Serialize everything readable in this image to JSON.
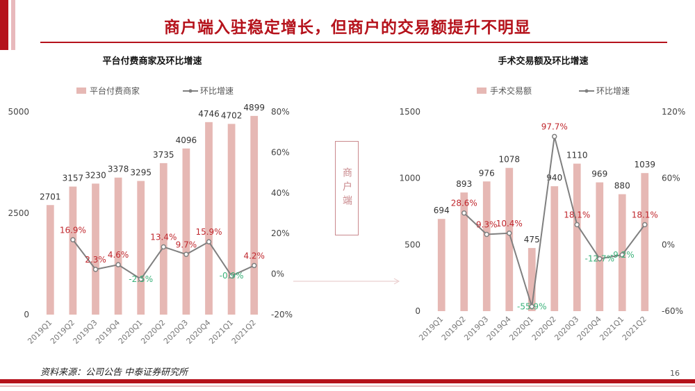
{
  "page": {
    "title": "商户端入驻稳定增长，但商户的交易额提升不明显",
    "source": "资料来源：公司公告 中泰证券研究所",
    "page_number": "16",
    "middle_label": "商户端",
    "colors": {
      "accent": "#b5121b",
      "bar": "#e6b8b4",
      "line": "#7f7f7f",
      "positive_label": "#c0282e",
      "negative_label": "#3bb27a"
    }
  },
  "chart_data": [
    {
      "type": "bar",
      "title": "平台付费商家及环比增速",
      "categories": [
        "2019Q1",
        "2019Q2",
        "2019Q3",
        "2019Q4",
        "2020Q1",
        "2020Q2",
        "2020Q3",
        "2020Q4",
        "2021Q1",
        "2021Q2"
      ],
      "series": [
        {
          "name": "平台付费商家",
          "type": "bar",
          "axis": "left",
          "values": [
            2701,
            3157,
            3230,
            3378,
            3295,
            3735,
            4096,
            4746,
            4702,
            4899
          ]
        },
        {
          "name": "环比增速",
          "type": "line",
          "axis": "right",
          "values": [
            null,
            16.9,
            2.3,
            4.6,
            -2.5,
            13.4,
            9.7,
            15.9,
            -0.9,
            4.2
          ],
          "labels": [
            "",
            "16.9%",
            "2.3%",
            "4.6%",
            "-2.5%",
            "13.4%",
            "9.7%",
            "15.9%",
            "-0.9%",
            "4.2%"
          ]
        }
      ],
      "left_axis": {
        "ylim": [
          0,
          5000
        ],
        "ticks": [
          "0",
          "2500",
          "5000"
        ]
      },
      "right_axis": {
        "ylim": [
          -20,
          80
        ],
        "ticks": [
          "-20%",
          "0%",
          "20%",
          "40%",
          "60%",
          "80%"
        ]
      },
      "legend": "top"
    },
    {
      "type": "bar",
      "title": "手术交易额及环比增速",
      "categories": [
        "2019Q1",
        "2019Q2",
        "2019Q3",
        "2019Q4",
        "2020Q1",
        "2020Q2",
        "2020Q3",
        "2020Q4",
        "2021Q1",
        "2021Q2"
      ],
      "series": [
        {
          "name": "手术交易额",
          "type": "bar",
          "axis": "left",
          "values": [
            694,
            893,
            976,
            1078,
            475,
            940,
            1110,
            969,
            880,
            1039
          ]
        },
        {
          "name": "环比增速",
          "type": "line",
          "axis": "right",
          "values": [
            null,
            28.6,
            9.3,
            10.4,
            -55.9,
            97.7,
            18.1,
            -12.7,
            -9.2,
            18.1
          ],
          "labels": [
            "",
            "28.6%",
            "9.3%",
            "10.4%",
            "-55.9%",
            "97.7%",
            "18.1%",
            "-12.7%",
            "-9.2%",
            "18.1%"
          ]
        }
      ],
      "left_axis": {
        "ylim": [
          0,
          1500
        ],
        "ticks": [
          "0",
          "500",
          "1000",
          "1500"
        ]
      },
      "right_axis": {
        "ylim": [
          -60,
          120
        ],
        "ticks": [
          "-60%",
          "0%",
          "60%",
          "120%"
        ]
      },
      "legend": "top"
    }
  ]
}
